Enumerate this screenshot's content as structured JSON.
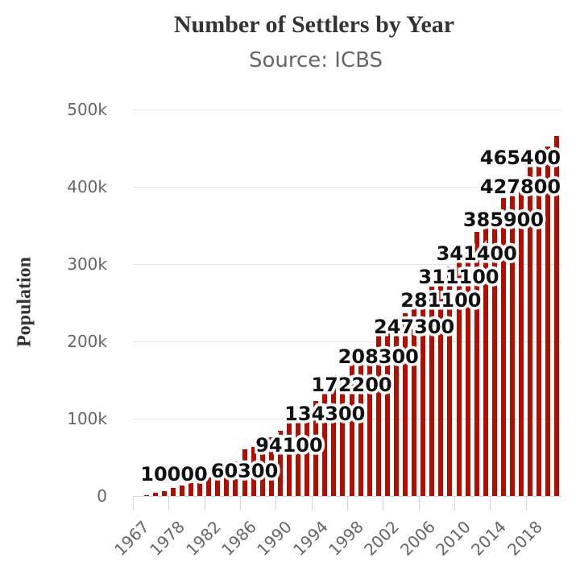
{
  "chart_data": {
    "type": "bar",
    "title": "Number of Settlers by Year",
    "subtitle": "Source: ICBS",
    "ylabel": "Population",
    "categories": [
      "1967",
      "1972",
      "1976",
      "1977",
      "1978",
      "1979",
      "1980",
      "1981",
      "1982",
      "1983",
      "1984",
      "1985",
      "1986",
      "1987",
      "1988",
      "1989",
      "1990",
      "1991",
      "1992",
      "1993",
      "1994",
      "1995",
      "1996",
      "1997",
      "1998",
      "1999",
      "2000",
      "2001",
      "2002",
      "2003",
      "2004",
      "2005",
      "2006",
      "2007",
      "2008",
      "2009",
      "2010",
      "2011",
      "2012",
      "2013",
      "2014",
      "2015",
      "2016",
      "2017",
      "2018",
      "2019",
      "2020",
      "2021"
    ],
    "values": [
      0,
      1500,
      4200,
      6000,
      10000,
      13500,
      16500,
      20000,
      24000,
      28500,
      34000,
      45000,
      60300,
      64000,
      70000,
      76000,
      84000,
      94100,
      103000,
      112000,
      122500,
      134300,
      144000,
      156000,
      172200,
      180000,
      192000,
      208300,
      218000,
      227000,
      236000,
      247300,
      261000,
      271000,
      281100,
      297000,
      311100,
      325000,
      341400,
      356000,
      371000,
      385900,
      399000,
      413000,
      427800,
      441600,
      451700,
      465400
    ],
    "data_labels": [
      {
        "index": 4,
        "text": "10000"
      },
      {
        "index": 12,
        "text": "60300"
      },
      {
        "index": 17,
        "text": "94100"
      },
      {
        "index": 21,
        "text": "134300"
      },
      {
        "index": 24,
        "text": "172200"
      },
      {
        "index": 27,
        "text": "208300"
      },
      {
        "index": 31,
        "text": "247300"
      },
      {
        "index": 34,
        "text": "281100"
      },
      {
        "index": 36,
        "text": "311100"
      },
      {
        "index": 38,
        "text": "341400"
      },
      {
        "index": 41,
        "text": "385900"
      },
      {
        "index": 44,
        "text": "427800"
      },
      {
        "index": 47,
        "text": "465400"
      }
    ],
    "x_tick_labels": [
      "1967",
      "1978",
      "1982",
      "1986",
      "1990",
      "1994",
      "1998",
      "2002",
      "2006",
      "2010",
      "2014",
      "2018"
    ],
    "y_tick_labels": [
      "0",
      "100k",
      "200k",
      "300k",
      "400k",
      "500k"
    ],
    "ylim": [
      0,
      500000
    ],
    "grid": true,
    "legend": "none",
    "bar_color": "#b30d00",
    "grid_color": "#e6e6e6",
    "axis_color": "#ccd6eb",
    "label_text_color": "#111111",
    "label_outline_color": "#ffffff",
    "tick_label_color": "#666666",
    "title_color": "#333333",
    "subtitle_color": "#666666"
  }
}
